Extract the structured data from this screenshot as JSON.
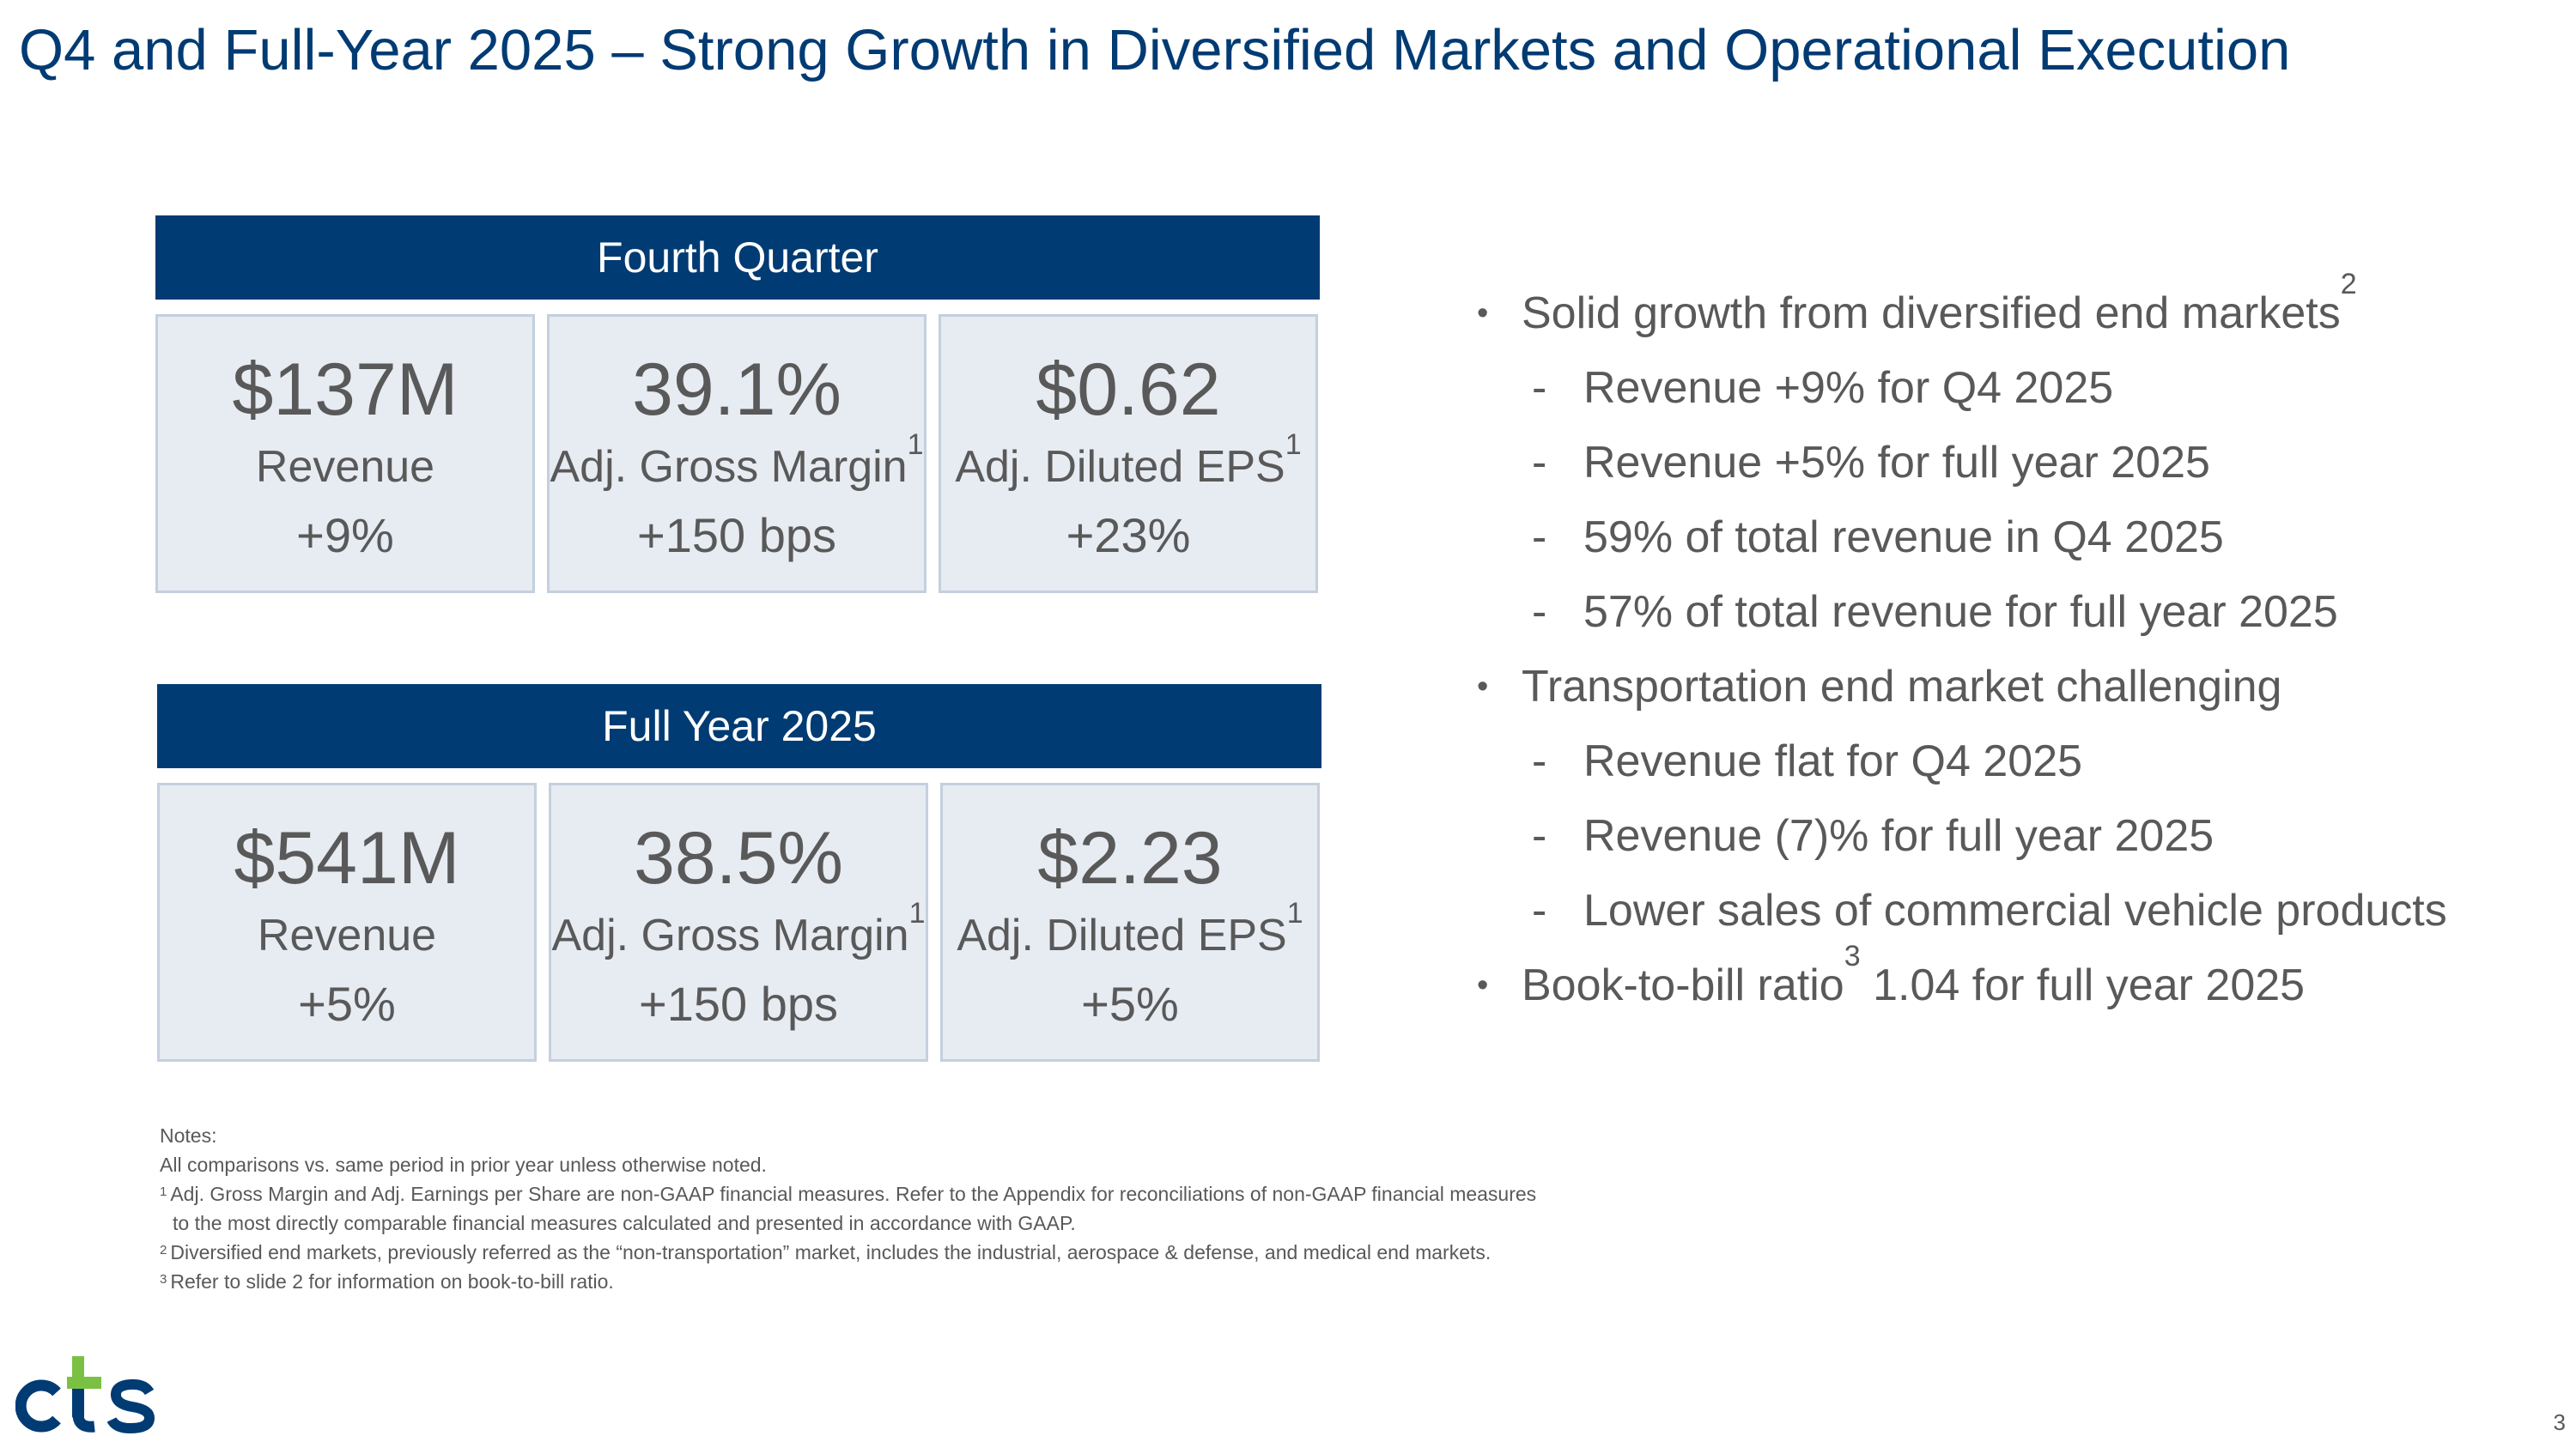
{
  "slide": {
    "title": "Q4 and Full-Year 2025 – Strong Growth in Diversified Markets and Operational Execution",
    "page_number": "3"
  },
  "fourth_quarter": {
    "header": "Fourth Quarter",
    "tiles": [
      {
        "value": "$137M",
        "label": "Revenue",
        "footnote": "",
        "change": "+9%"
      },
      {
        "value": "39.1%",
        "label": "Adj. Gross Margin",
        "footnote": "1",
        "change": "+150 bps"
      },
      {
        "value": "$0.62",
        "label": "Adj. Diluted EPS",
        "footnote": "1",
        "change": "+23%"
      }
    ]
  },
  "full_year": {
    "header": "Full Year 2025",
    "tiles": [
      {
        "value": "$541M",
        "label": "Revenue",
        "footnote": "",
        "change": "+5%"
      },
      {
        "value": "38.5%",
        "label": "Adj. Gross Margin",
        "footnote": "1",
        "change": "+150 bps"
      },
      {
        "value": "$2.23",
        "label": "Adj. Diluted EPS",
        "footnote": "1",
        "change": "+5%"
      }
    ]
  },
  "bullets": {
    "bullet_char": "•",
    "dash_char": "-",
    "items": [
      {
        "text": "Solid growth from diversified end markets",
        "footnote": "2"
      },
      {
        "text": "Revenue +9% for Q4 2025"
      },
      {
        "text": "Revenue +5% for full year 2025"
      },
      {
        "text": "59% of total revenue in Q4 2025"
      },
      {
        "text": "57% of total revenue for full year 2025"
      },
      {
        "text": "Transportation end market challenging"
      },
      {
        "text": "Revenue flat for Q4 2025"
      },
      {
        "text": "Revenue (7)% for full year 2025"
      },
      {
        "text": "Lower sales of commercial vehicle products"
      },
      {
        "text_before": "Book-to-bill ratio",
        "footnote": "3",
        "text_after": " 1.04 for full year 2025"
      }
    ]
  },
  "notes": {
    "heading": "Notes:",
    "general": "All comparisons vs. same period in prior year unless otherwise noted.",
    "footnotes": [
      {
        "marker": "1",
        "text": "Adj. Gross Margin and Adj. Earnings per Share are non-GAAP financial measures. Refer to the Appendix for reconciliations of non-GAAP financial measures",
        "continuation": "to the most directly comparable financial measures calculated and presented in accordance with GAAP."
      },
      {
        "marker": "2",
        "text": "Diversified end markets, previously referred as the “non-transportation” market, includes the industrial, aerospace & defense, and medical end markets."
      },
      {
        "marker": "3",
        "text": "Refer to slide 2 for information on book-to-bill ratio."
      }
    ]
  },
  "logo": {
    "text": "cts",
    "colors": {
      "navy": "#003b73",
      "green": "#7ac143"
    }
  },
  "colors": {
    "brand_navy": "#003b73",
    "tile_background": "#e7ebf2",
    "tile_border": "#c4d0de",
    "body_text": "#595959"
  }
}
